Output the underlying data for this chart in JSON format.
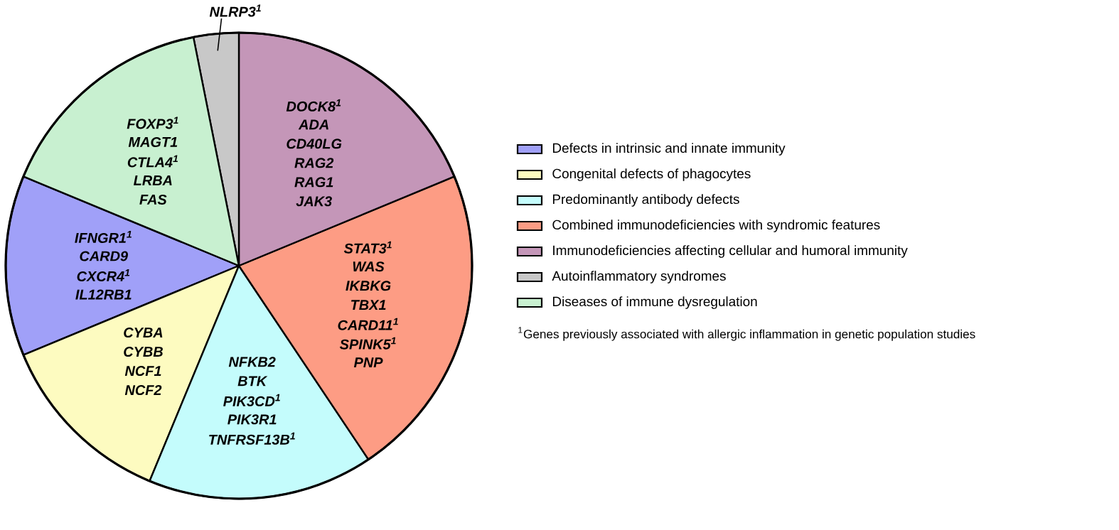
{
  "chart_data": {
    "type": "pie",
    "categories": [
      "Defects in intrinsic and innate immunity",
      "Congenital defects of phagocytes",
      "Predominantly antibody defects",
      "Combined immunodeficiencies with syndromic features",
      "Immunodeficiencies affecting cellular and humoral immunity",
      "Autoinflammatory syndromes",
      "Diseases of immune dysregulation"
    ],
    "values": [
      12.5,
      12.5,
      15.625,
      21.875,
      18.75,
      3.125,
      15.625
    ],
    "colors": [
      "#a0a0f8",
      "#fdfbc0",
      "#c4fcfc",
      "#fd9c84",
      "#c496b8",
      "#c8c8c8",
      "#c8f0d0"
    ],
    "legend": "right",
    "annotations": [
      {
        "text": "IFNGR1$^{1}$",
        "x": "Defects in intrinsic and innate immunity"
      },
      {
        "text": "CARD9",
        "x": "Defects in intrinsic and innate immunity"
      },
      {
        "text": "CXCR4$^{1}$",
        "x": "Defects in intrinsic and innate immunity"
      },
      {
        "text": "IL12RB1",
        "x": "Defects in intrinsic and innate immunity"
      },
      {
        "text": "CYBA",
        "x": "Congenital defects of phagocytes"
      },
      {
        "text": "CYBB",
        "x": "Congenital defects of phagocytes"
      },
      {
        "text": "NCF1",
        "x": "Congenital defects of phagocytes"
      },
      {
        "text": "NCF2",
        "x": "Congenital defects of phagocytes"
      },
      {
        "text": "NFKB2",
        "x": "Predominantly antibody defects"
      },
      {
        "text": "BTK",
        "x": "Predominantly antibody defects"
      },
      {
        "text": "PIK3CD$^{1}$",
        "x": "Predominantly antibody defects"
      },
      {
        "text": "PIK3R1",
        "x": "Predominantly antibody defects"
      },
      {
        "text": "TNFRSF13B$^{1}$",
        "x": "Predominantly antibody defects"
      },
      {
        "text": "STAT3$^{1}$",
        "x": "Combined immunodeficiencies with syndromic features"
      },
      {
        "text": "WAS",
        "x": "Combined immunodeficiencies with syndromic features"
      },
      {
        "text": "IKBKG",
        "x": "Combined immunodeficiencies with syndromic features"
      },
      {
        "text": "TBX1",
        "x": "Combined immunodeficiencies with syndromic features"
      },
      {
        "text": "CARD11$^{1}$",
        "x": "Combined immunodeficiencies with syndromic features"
      },
      {
        "text": "SPINK5$^{1}$",
        "x": "Combined immunodeficiencies with syndromic features"
      },
      {
        "text": "PNP",
        "x": "Combined immunodeficiencies with syndromic features"
      },
      {
        "text": "DOCK8$^{1}$",
        "x": "Immunodeficiencies affecting cellular and humoral immunity"
      },
      {
        "text": "ADA",
        "x": "Immunodeficiencies affecting cellular and humoral immunity"
      },
      {
        "text": "CD40LG",
        "x": "Immunodeficiencies affecting cellular and humoral immunity"
      },
      {
        "text": "RAG2",
        "x": "Immunodeficiencies affecting cellular and humoral immunity"
      },
      {
        "text": "RAG1",
        "x": "Immunodeficiencies affecting cellular and humoral immunity"
      },
      {
        "text": "JAK3",
        "x": "Immunodeficiencies affecting cellular and humoral immunity"
      },
      {
        "text": "NLRP3$^{1}$",
        "x": "Autoinflammatory syndromes"
      },
      {
        "text": "FOXP3$^{1}$",
        "x": "Diseases of immune dysregulation"
      },
      {
        "text": "MAGT1",
        "x": "Diseases of immune dysregulation"
      },
      {
        "text": "CTLA4$^{1}$",
        "x": "Diseases of immune dysregulation"
      },
      {
        "text": "LRBA",
        "x": "Diseases of immune dysregulation"
      },
      {
        "text": "FAS",
        "x": "Diseases of immune dysregulation"
      },
      "$^{1}$Genes previously associated with allergic inflammation in genetic population studies"
    ]
  }
}
